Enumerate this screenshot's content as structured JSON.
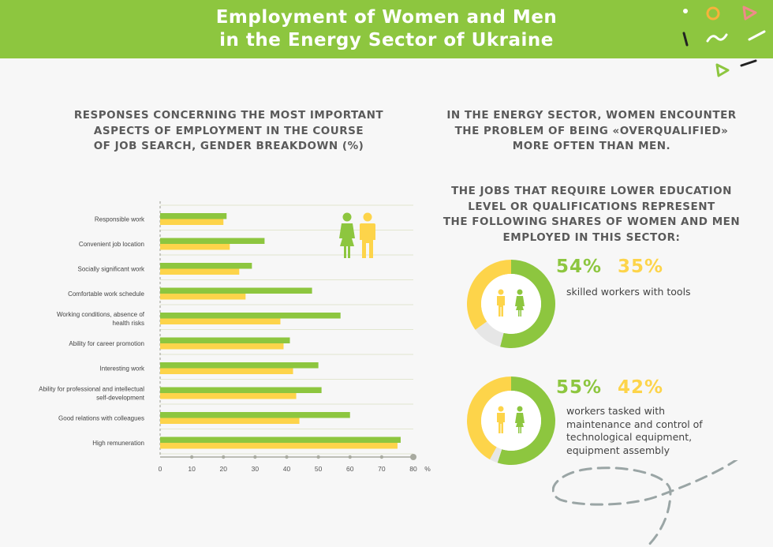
{
  "header": {
    "title_line1": "Employment of Women and Men",
    "title_line2": "in the Energy Sector of Ukraine"
  },
  "left_heading": [
    "RESPONSES CONCERNING THE MOST IMPORTANT",
    "ASPECTS OF EMPLOYMENT IN THE COURSE",
    "OF JOB SEARCH, GENDER BREAKDOWN (%)"
  ],
  "right_heading1": [
    "IN THE ENERGY SECTOR, WOMEN ENCOUNTER",
    "THE PROBLEM OF BEING «OVERQUALIFIED»",
    "MORE OFTEN THAN MEN."
  ],
  "right_heading2": [
    "THE JOBS THAT REQUIRE LOWER EDUCATION",
    "LEVEL OR QUALIFICATIONS REPRESENT",
    "THE FOLLOWING SHARES OF WOMEN AND MEN",
    "EMPLOYED IN THIS SECTOR:"
  ],
  "colors": {
    "women": "#8dc63f",
    "men": "#fdd44a",
    "header": "#8dc63f",
    "text": "#5a5a5a",
    "donut_rest": "#e6e6e6",
    "dash": "#9aa5a5"
  },
  "chart_data": [
    {
      "type": "bar",
      "orientation": "horizontal",
      "categories": [
        "Responsible work",
        "Convenient job location",
        "Socially significant work",
        "Comfortable work schedule",
        "Working conditions, absence of health risks",
        "Ability for career promotion",
        "Interesting work",
        "Ability for professional and intellectual self-development",
        "Good relations with colleagues",
        "High remuneration"
      ],
      "category_lines": [
        [
          "Responsible work"
        ],
        [
          "Convenient job location"
        ],
        [
          "Socially significant work"
        ],
        [
          "Comfortable work schedule"
        ],
        [
          "Working conditions, absence of",
          "health risks"
        ],
        [
          "Ability for career promotion"
        ],
        [
          "Interesting work"
        ],
        [
          "Ability for professional and intellectual",
          "self-development"
        ],
        [
          "Good relations with colleagues"
        ],
        [
          "High remuneration"
        ]
      ],
      "series": [
        {
          "color": "#8dc63f",
          "values": [
            21,
            33,
            29,
            48,
            57,
            41,
            50,
            51,
            60,
            76
          ],
          "icon": "woman-icon"
        },
        {
          "color": "#fdd44a",
          "values": [
            20,
            22,
            25,
            27,
            38,
            39,
            42,
            43,
            44,
            75
          ],
          "icon": "man-icon"
        }
      ],
      "xlim": [
        0,
        80
      ],
      "xticks": [
        "0",
        "10",
        "20",
        "30",
        "40",
        "50",
        "60",
        "70",
        "80"
      ],
      "x_unit": "%",
      "grid": true,
      "legend": "top-right icons"
    },
    {
      "type": "pie",
      "variant": "donut",
      "women_label": "54%",
      "men_label": "35%",
      "women_value": 54,
      "men_value": 35,
      "description_lines": [
        "skilled workers with tools"
      ]
    },
    {
      "type": "pie",
      "variant": "donut",
      "women_label": "55%",
      "men_label": "42%",
      "women_value": 55,
      "men_value": 42,
      "description_lines": [
        "workers tasked with",
        "maintenance and control of",
        "technological equipment,",
        "equipment assembly"
      ]
    }
  ]
}
